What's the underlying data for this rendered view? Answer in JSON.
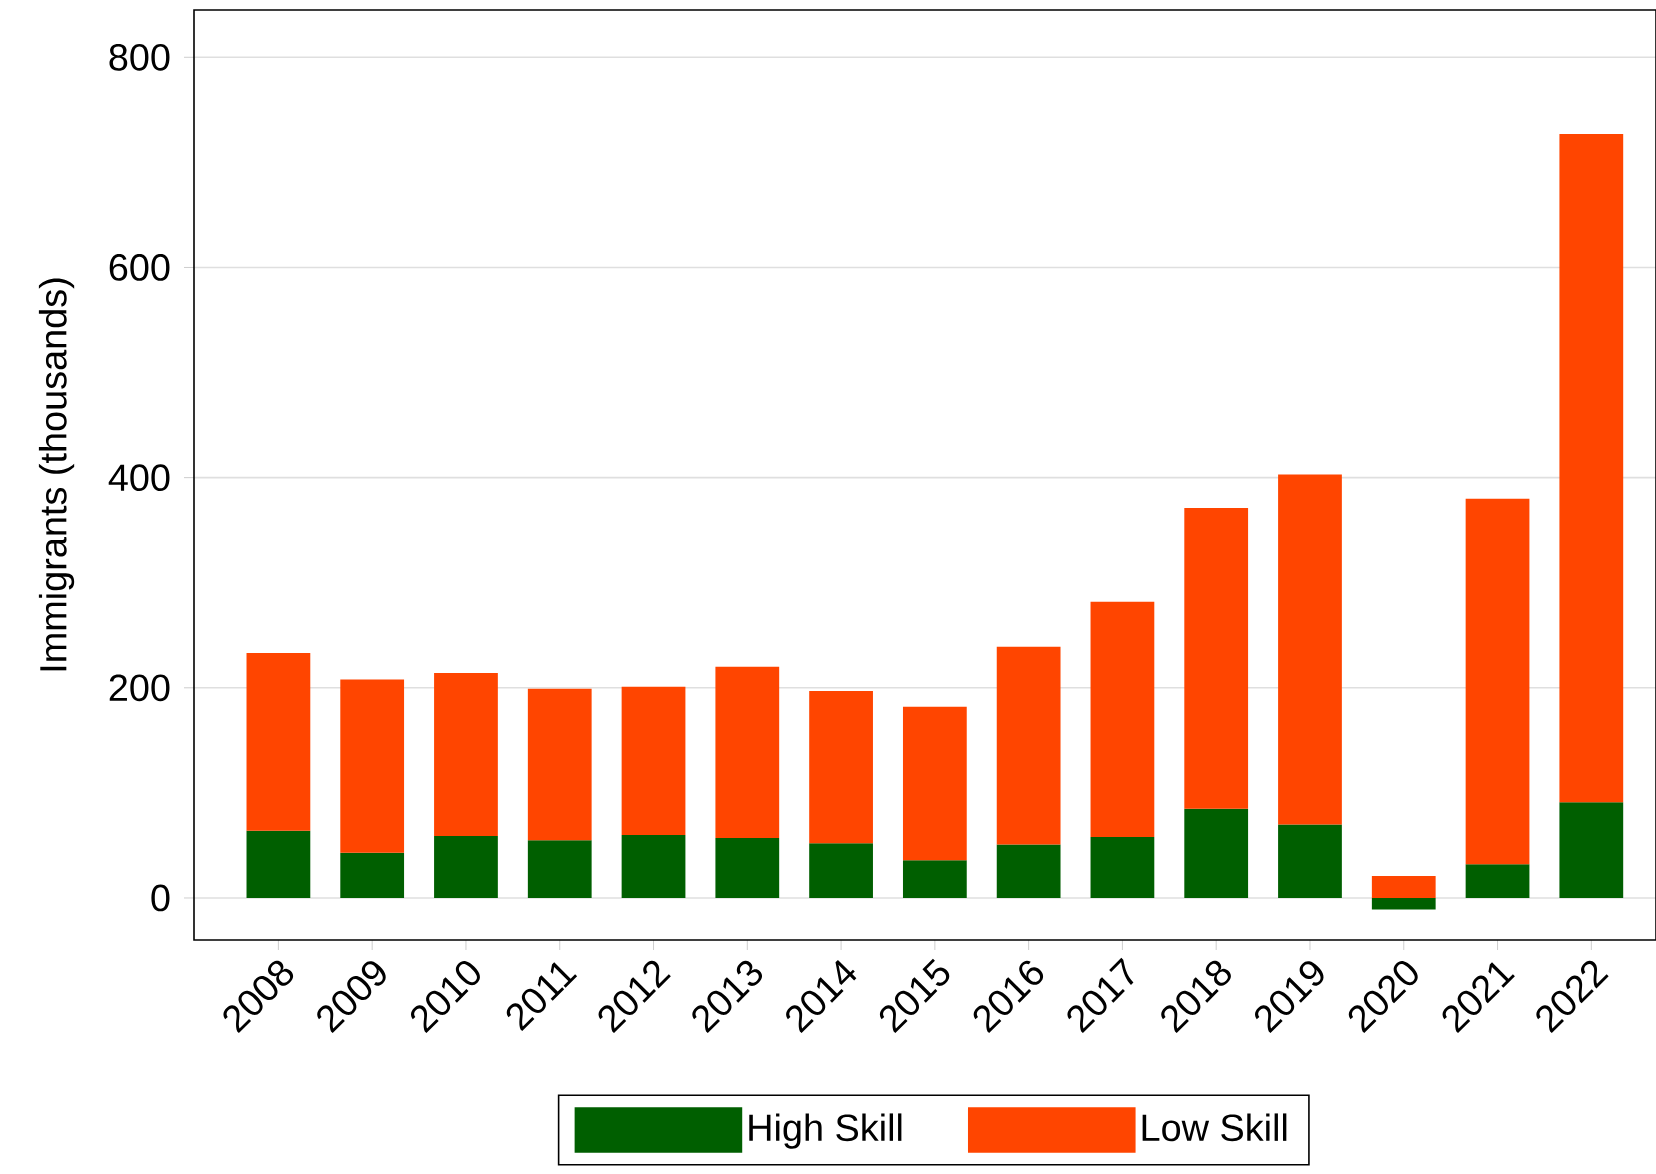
{
  "chart_data": {
    "type": "bar",
    "stacked": true,
    "ylabel": "Immigrants (thousands)",
    "categories": [
      "2008",
      "2009",
      "2010",
      "2011",
      "2012",
      "2013",
      "2014",
      "2015",
      "2016",
      "2017",
      "2018",
      "2019",
      "2020",
      "2021",
      "2022"
    ],
    "series": [
      {
        "name": "High Skill",
        "color": "#005f00",
        "values": [
          64,
          43,
          59,
          55,
          60,
          57,
          52,
          36,
          51,
          58,
          85,
          70,
          -11,
          32,
          91
        ]
      },
      {
        "name": "Low Skill",
        "color": "#ff4500",
        "values": [
          169,
          165,
          155,
          144,
          141,
          163,
          145,
          146,
          188,
          224,
          286,
          333,
          21,
          348,
          636
        ]
      }
    ],
    "ylim": [
      -40,
      845
    ],
    "yticks": [
      0,
      200,
      400,
      600,
      800
    ],
    "grid": "y",
    "legend": "bottom"
  }
}
